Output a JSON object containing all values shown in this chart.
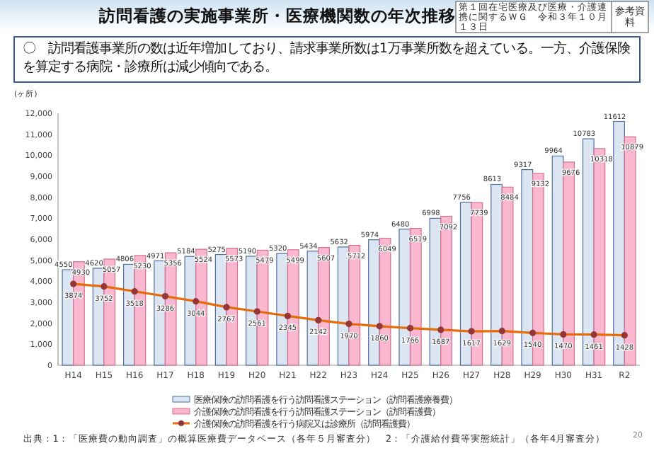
{
  "chart_data": {
    "type": "bar",
    "title": "訪問看護の実施事業所・医療機関数の年次推移",
    "subtitle": "〇　訪問看護事業所の数は近年増加しており、請求事業所数は1万事業所数を超えている。一方、介護保険を算定する病院・診療所は減少傾向である。",
    "ylabel": "(ヶ所)",
    "annotations": [
      "第１回在宅医療及び医療・介護連携に関するＷＧ　令和３年１０月１３日",
      "参考資料",
      "出典：1：「医療費の動向調査」の概算医療費データベース（各年５月審査分）　2：「介護給付費等実態統計」（各年4月審査分）",
      "20"
    ],
    "categories": [
      "H14",
      "H15",
      "H16",
      "H17",
      "H18",
      "H19",
      "H20",
      "H21",
      "H22",
      "H23",
      "H24",
      "H25",
      "H26",
      "H27",
      "H28",
      "H29",
      "H30",
      "H31",
      "R2"
    ],
    "series": [
      {
        "name": "医療保険の訪問看護を行う訪問看護ステーション（訪問看護療養費）",
        "color": "#dce6f2",
        "values": [
          4550,
          4620,
          4806,
          4971,
          5184,
          5275,
          5190,
          5320,
          5434,
          5632,
          5974,
          6480,
          6998,
          7756,
          8613,
          9317,
          9964,
          10783,
          11612
        ]
      },
      {
        "name": "介護保険の訪問看護を行う訪問看護ステーション（訪問看護費）",
        "color": "#f9b8cf",
        "values": [
          4930,
          5057,
          5230,
          5356,
          5524,
          5573,
          5479,
          5499,
          5607,
          5712,
          6049,
          6519,
          7092,
          7739,
          8484,
          9132,
          9676,
          10318,
          10879
        ]
      },
      {
        "name": "介護保険の訪問看護を行う病院又は診療所（訪問看護費）",
        "type": "line",
        "color": "#e46c0a",
        "values": [
          3874,
          3752,
          3518,
          3286,
          3044,
          2767,
          2561,
          2345,
          2142,
          1970,
          1860,
          1766,
          1687,
          1617,
          1629,
          1540,
          1470,
          1461,
          1428
        ]
      }
    ],
    "marker": "circle",
    "data_labels": true,
    "legend": "bottom",
    "ylim": [
      0,
      12000
    ],
    "yticks": [
      0,
      {
        "value": 1000,
        "label": "1,000"
      },
      {
        "value": 2000,
        "label": "2,000"
      },
      {
        "value": 3000,
        "label": "3,000"
      },
      {
        "value": 4000,
        "label": "4,000"
      },
      {
        "value": 5000,
        "label": "5,000"
      },
      {
        "value": 6000,
        "label": "6,000"
      },
      {
        "value": 7000,
        "label": "7,000"
      },
      {
        "value": 8000,
        "label": "8,000"
      },
      {
        "value": 9000,
        "label": "9,000"
      },
      {
        "value": 10000,
        "label": "10,000"
      },
      {
        "value": 11000,
        "label": "11,000"
      },
      {
        "value": 12000,
        "label": "12,000"
      }
    ]
  }
}
